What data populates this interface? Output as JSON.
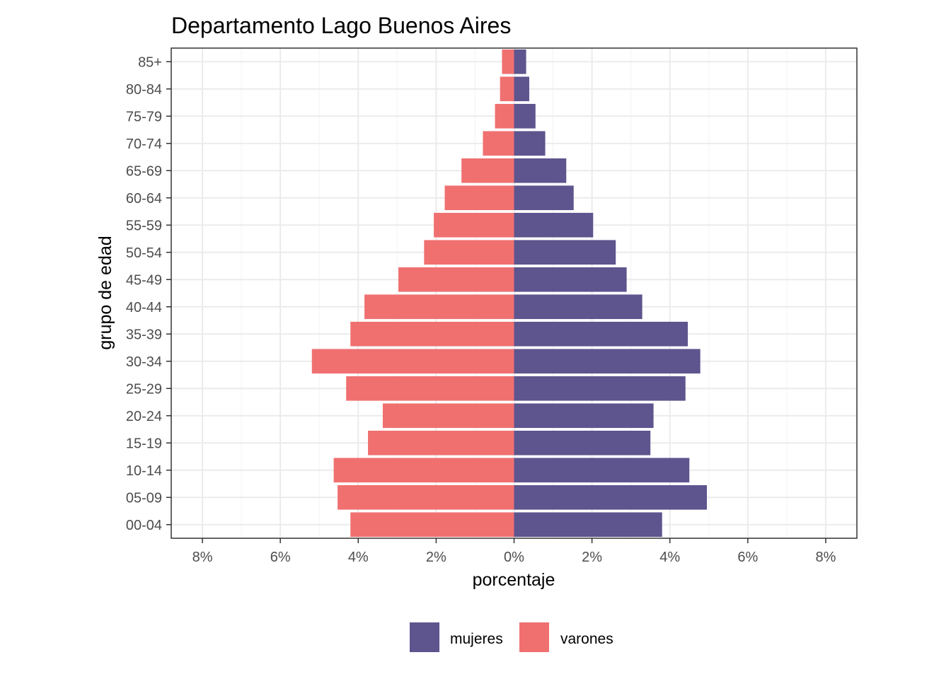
{
  "chart_data": {
    "type": "bar",
    "orientation": "horizontal",
    "title": "Departamento Lago Buenos Aires",
    "xlabel": "porcentaje",
    "ylabel": "grupo de edad",
    "xlim": [
      -8.8,
      8.8
    ],
    "x_ticks": [
      -8,
      -6,
      -4,
      -2,
      0,
      2,
      4,
      6,
      8
    ],
    "x_tick_labels": [
      "8%",
      "6%",
      "4%",
      "2%",
      "0%",
      "2%",
      "4%",
      "6%",
      "8%"
    ],
    "categories": [
      "00-04",
      "05-09",
      "10-14",
      "15-19",
      "20-24",
      "25-29",
      "30-34",
      "35-39",
      "40-44",
      "45-49",
      "50-54",
      "55-59",
      "60-64",
      "65-69",
      "70-74",
      "75-79",
      "80-84",
      "85+"
    ],
    "series": [
      {
        "name": "mujeres",
        "color": "#5e548e",
        "values": [
          3.8,
          4.95,
          4.5,
          3.5,
          3.58,
          4.4,
          4.78,
          4.46,
          3.29,
          2.89,
          2.61,
          2.03,
          1.53,
          1.34,
          0.8,
          0.55,
          0.39,
          0.31
        ]
      },
      {
        "name": "varones",
        "color": "#f07070",
        "values": [
          4.2,
          4.53,
          4.63,
          3.75,
          3.37,
          4.31,
          5.19,
          4.2,
          3.84,
          2.97,
          2.31,
          2.06,
          1.78,
          1.35,
          0.8,
          0.49,
          0.36,
          0.31
        ]
      }
    ],
    "grid": true,
    "legend_position": "bottom"
  }
}
